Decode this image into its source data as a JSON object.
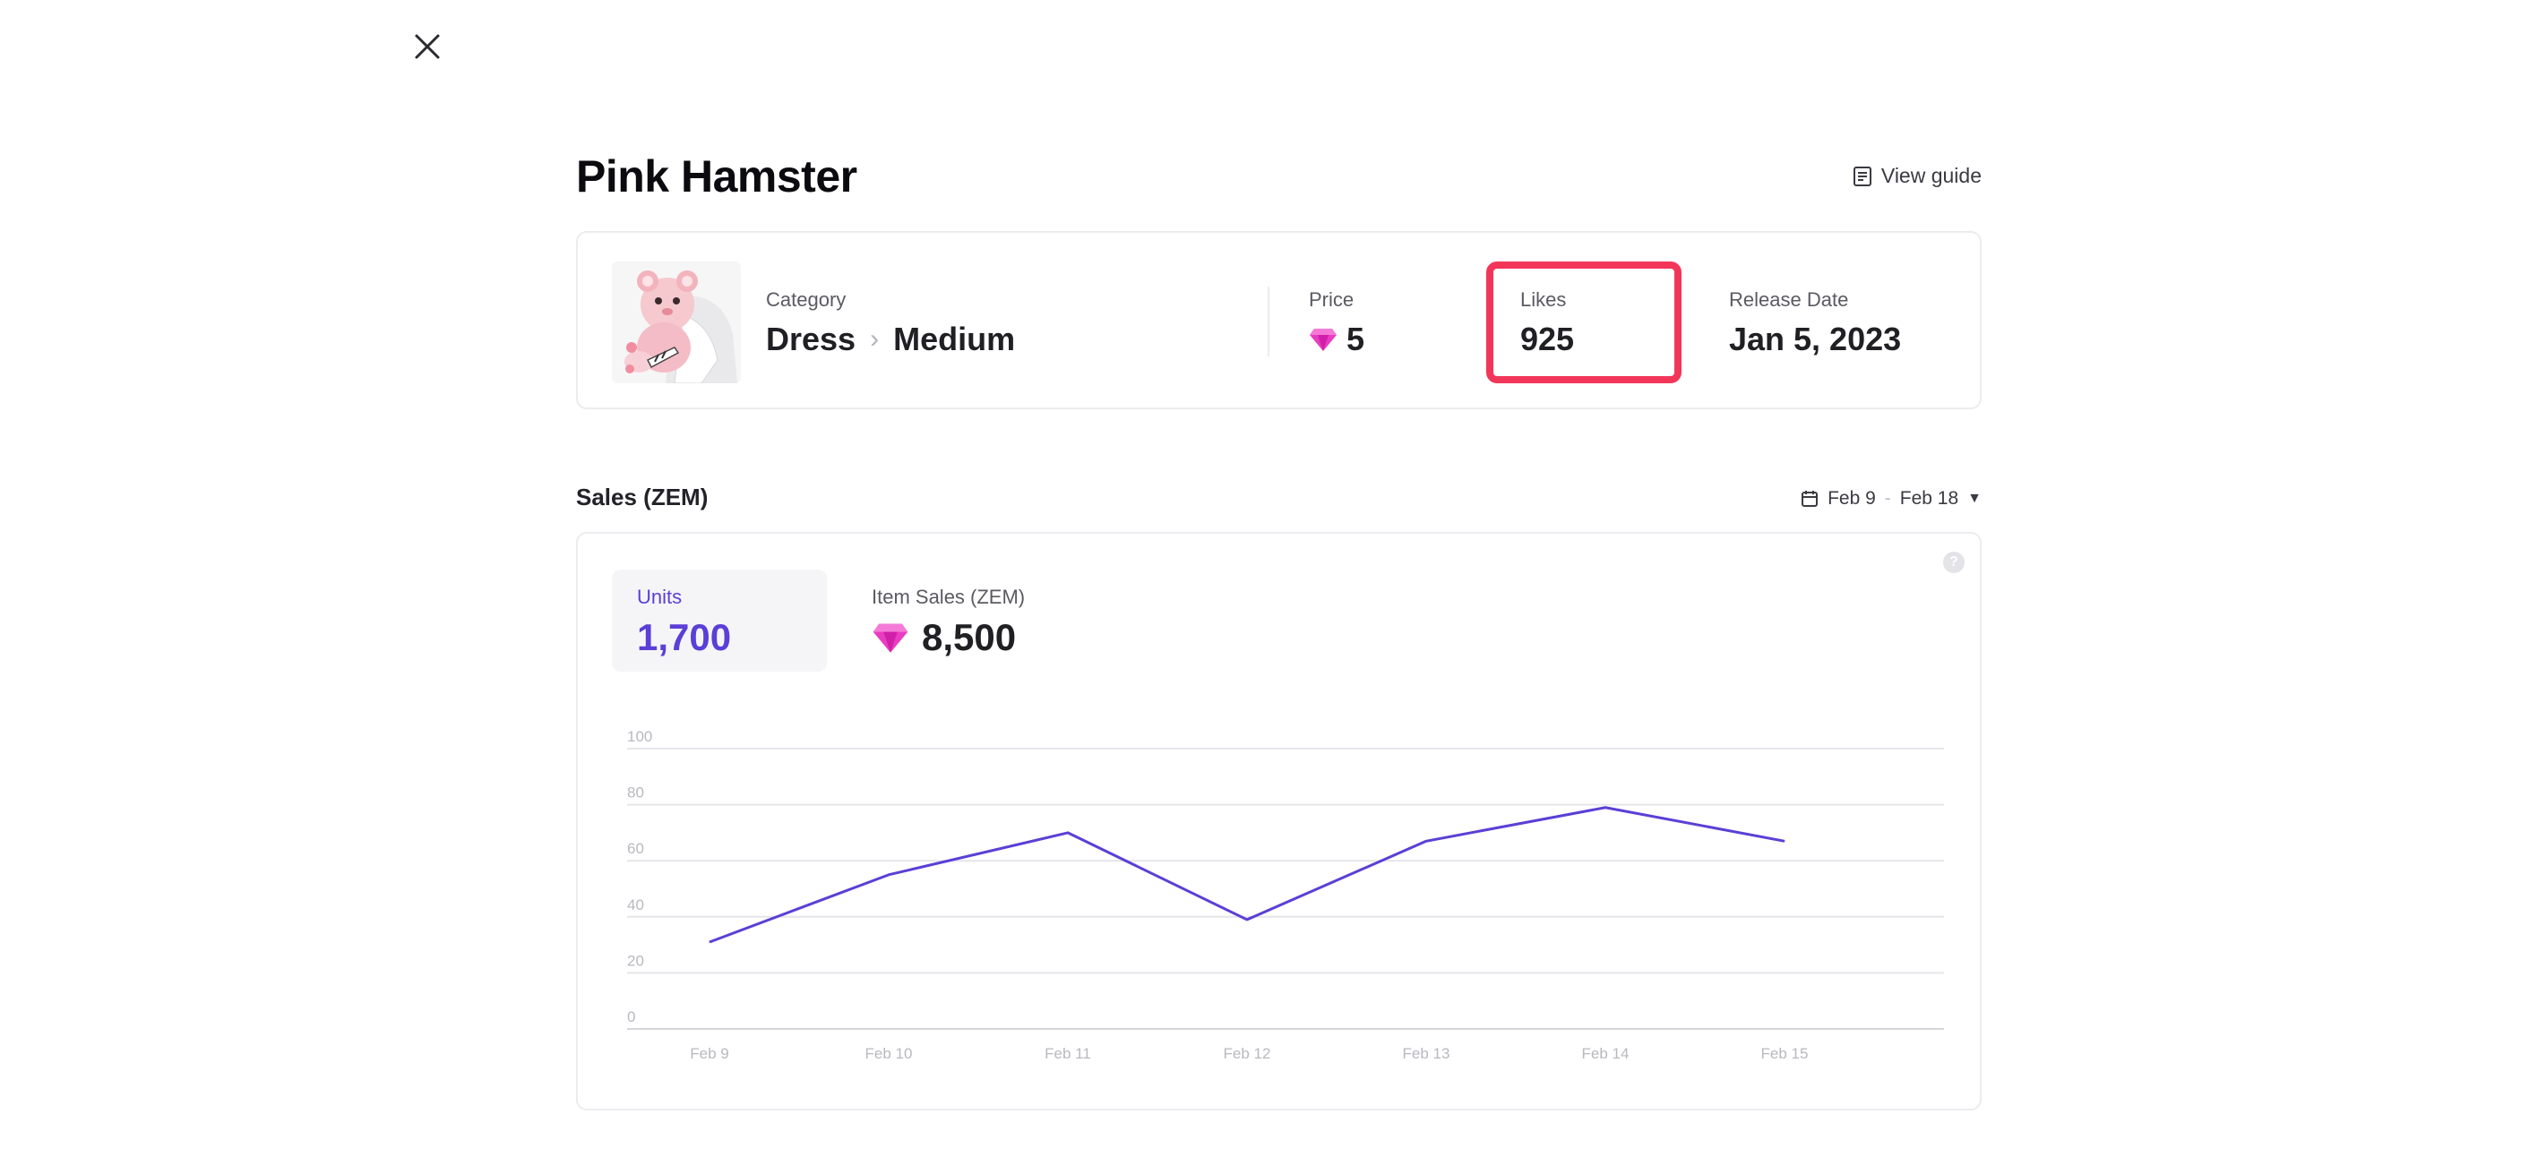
{
  "header": {
    "close_icon": "close-icon",
    "title": "Pink Hamster",
    "view_guide_label": "View guide",
    "view_guide_icon": "document-icon"
  },
  "item": {
    "thumbnail_icon": "pink-hamster-thumbnail",
    "category_label": "Category",
    "category_path": [
      "Dress",
      "Medium"
    ],
    "price_label": "Price",
    "price_value": "5",
    "price_icon": "gem-icon",
    "likes_label": "Likes",
    "likes_value": "925",
    "release_label": "Release Date",
    "release_value": "Jan 5, 2023",
    "highlight_color": "#f2365a"
  },
  "sales": {
    "title": "Sales (ZEM)",
    "date_range_start": "Feb 9",
    "date_range_sep": "-",
    "date_range_end": "Feb 18",
    "calendar_icon": "calendar-icon",
    "help_icon": "help-icon",
    "help_text": "?",
    "metrics": [
      {
        "label": "Units",
        "value": "1,700",
        "active": true
      },
      {
        "label": "Item Sales (ZEM)",
        "value": "8,500",
        "icon": "gem-icon"
      }
    ],
    "accent_color": "#5b3fd6"
  },
  "chart_data": {
    "type": "line",
    "categories": [
      "Feb 9",
      "Feb 10",
      "Feb 11",
      "Feb 12",
      "Feb 13",
      "Feb 14",
      "Feb 15"
    ],
    "series": [
      {
        "values": [
          31,
          55,
          70,
          39,
          67,
          79,
          67
        ]
      }
    ],
    "yticks": [
      0,
      20,
      40,
      60,
      80,
      100
    ],
    "ylim": [
      0,
      100
    ],
    "grid": true,
    "color": "#5b3fd6"
  }
}
